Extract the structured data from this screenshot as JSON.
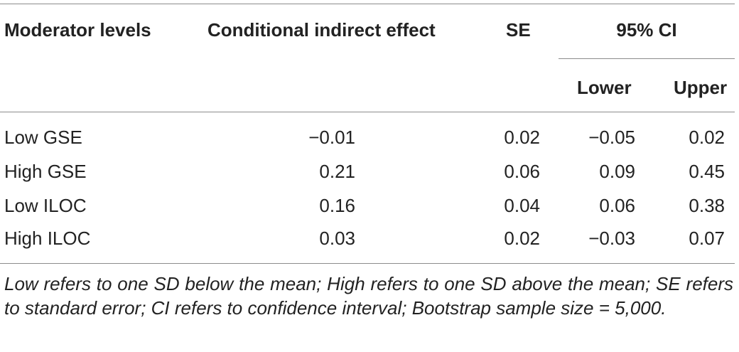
{
  "table": {
    "headers": {
      "moderator": "Moderator levels",
      "effect": "Conditional indirect effect",
      "se": "SE",
      "ci": "95% CI",
      "lower": "Lower",
      "upper": "Upper"
    },
    "rows": [
      {
        "level": "Low GSE",
        "effect": "−0.01",
        "se": "0.02",
        "lower": "−0.05",
        "upper": "0.02"
      },
      {
        "level": "High GSE",
        "effect": "0.21",
        "se": "0.06",
        "lower": "0.09",
        "upper": "0.45"
      },
      {
        "level": "Low ILOC",
        "effect": "0.16",
        "se": "0.04",
        "lower": "0.06",
        "upper": "0.38"
      },
      {
        "level": "High ILOC",
        "effect": "0.03",
        "se": "0.02",
        "lower": "−0.03",
        "upper": "0.07"
      }
    ],
    "note": "Low refers to one SD below the mean; High refers to one SD above the mean; SE refers to standard error; CI refers to confidence interval; Bootstrap sample size = 5,000."
  }
}
